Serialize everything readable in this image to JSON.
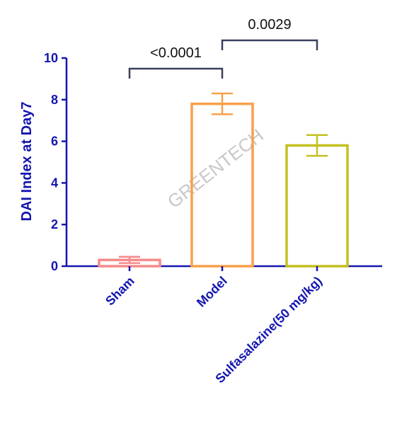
{
  "chart_data": {
    "type": "bar",
    "ylabel": "DAI Index at Day7",
    "xlabel": "",
    "ylim": [
      0,
      10
    ],
    "yticks": [
      0,
      2,
      4,
      6,
      8,
      10
    ],
    "categories": [
      "Sham",
      "Model",
      "Sulfasalazine(50 mg/kg)"
    ],
    "values": [
      0.3,
      7.8,
      5.8
    ],
    "error": [
      0.15,
      0.5,
      0.5
    ],
    "bar_colors": [
      "#f58a8a",
      "#f9a04a",
      "#c3c01e"
    ],
    "comparisons": [
      {
        "from": 0,
        "to": 1,
        "label": "<0.0001"
      },
      {
        "from": 1,
        "to": 2,
        "label": "0.0029"
      }
    ],
    "axis_color": "#1515b0",
    "bracket_color": "#3a3f5e"
  },
  "watermark": "GREENTECH"
}
